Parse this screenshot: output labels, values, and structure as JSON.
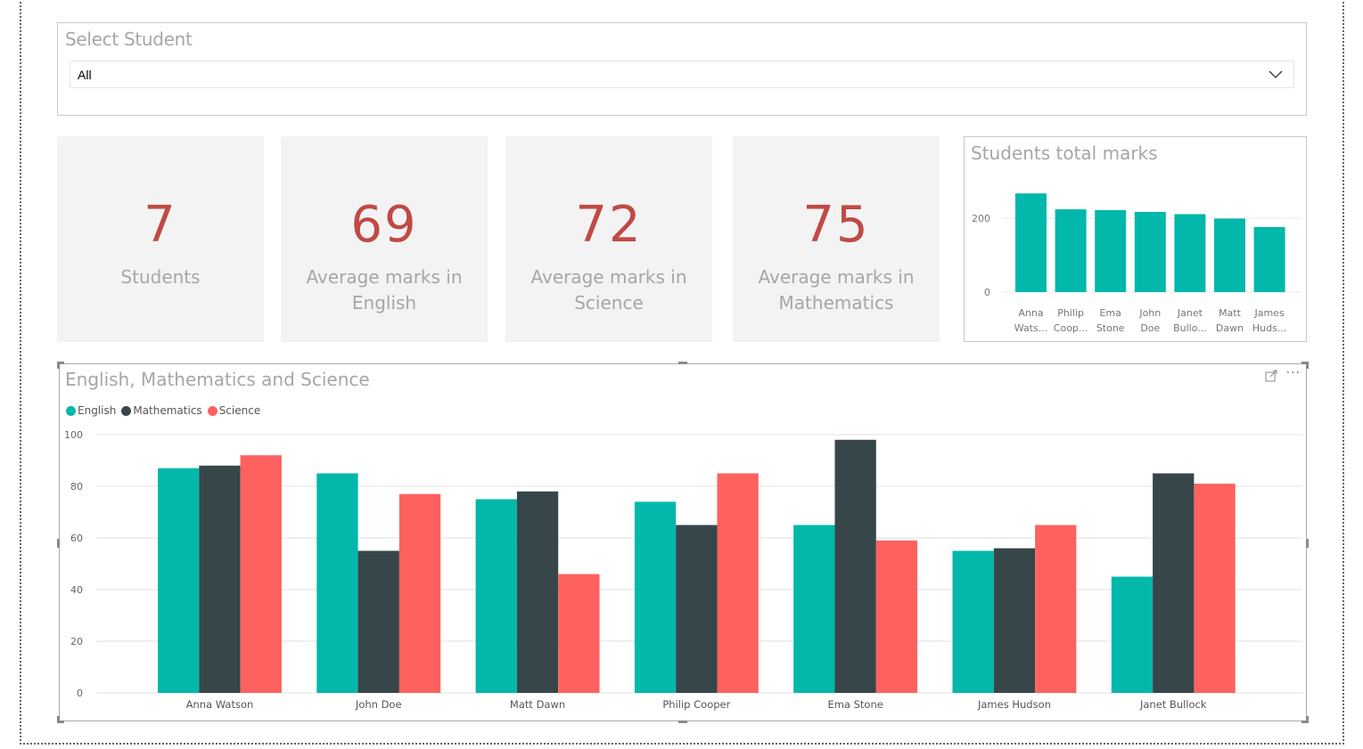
{
  "slicer": {
    "title": "Select Student",
    "selected": "All"
  },
  "cards": [
    {
      "value": "7",
      "label": "Students"
    },
    {
      "value": "69",
      "label": "Average marks in English"
    },
    {
      "value": "72",
      "label": "Average marks in Science"
    },
    {
      "value": "75",
      "label": "Average marks in Mathematics"
    }
  ],
  "colors": {
    "english": "#01b8aa",
    "mathematics": "#374649",
    "science": "#fd625e",
    "card_value": "#bf4a45"
  },
  "icons": {
    "focus_mode": "focus-mode-icon",
    "more_options": "more-options-icon",
    "dropdown": "chevron-down-icon"
  },
  "more_label": "···",
  "chart_data": [
    {
      "type": "bar",
      "title": "Students total marks",
      "categories": [
        "Anna Wats...",
        "Philip Coop...",
        "Ema Stone",
        "John Doe",
        "Janet Bullo...",
        "Matt Dawn",
        "James Huds..."
      ],
      "category_lines": [
        [
          "Anna",
          "Wats..."
        ],
        [
          "Philip",
          "Coop..."
        ],
        [
          "Ema",
          "Stone"
        ],
        [
          "John",
          "Doe"
        ],
        [
          "Janet",
          "Bullo..."
        ],
        [
          "Matt",
          "Dawn"
        ],
        [
          "James",
          "Huds..."
        ]
      ],
      "values": [
        267,
        224,
        222,
        217,
        211,
        199,
        176
      ],
      "yticks": [
        "0",
        "200"
      ],
      "ylim": [
        0,
        280
      ],
      "grid": true,
      "xlabel": "",
      "ylabel": ""
    },
    {
      "type": "bar",
      "title": "English, Mathematics and Science",
      "categories": [
        "Anna Watson",
        "John Doe",
        "Matt Dawn",
        "Philip Cooper",
        "Ema Stone",
        "James Hudson",
        "Janet Bullock"
      ],
      "series": [
        {
          "name": "English",
          "values": [
            87,
            85,
            75,
            74,
            65,
            55,
            45
          ]
        },
        {
          "name": "Mathematics",
          "values": [
            88,
            55,
            78,
            65,
            98,
            56,
            85
          ]
        },
        {
          "name": "Science",
          "values": [
            92,
            77,
            46,
            85,
            59,
            65,
            81
          ]
        }
      ],
      "yticks": [
        "0",
        "20",
        "40",
        "60",
        "80",
        "100"
      ],
      "ylim": [
        0,
        100
      ],
      "legend": "top-left",
      "grid": true,
      "xlabel": "",
      "ylabel": ""
    }
  ]
}
